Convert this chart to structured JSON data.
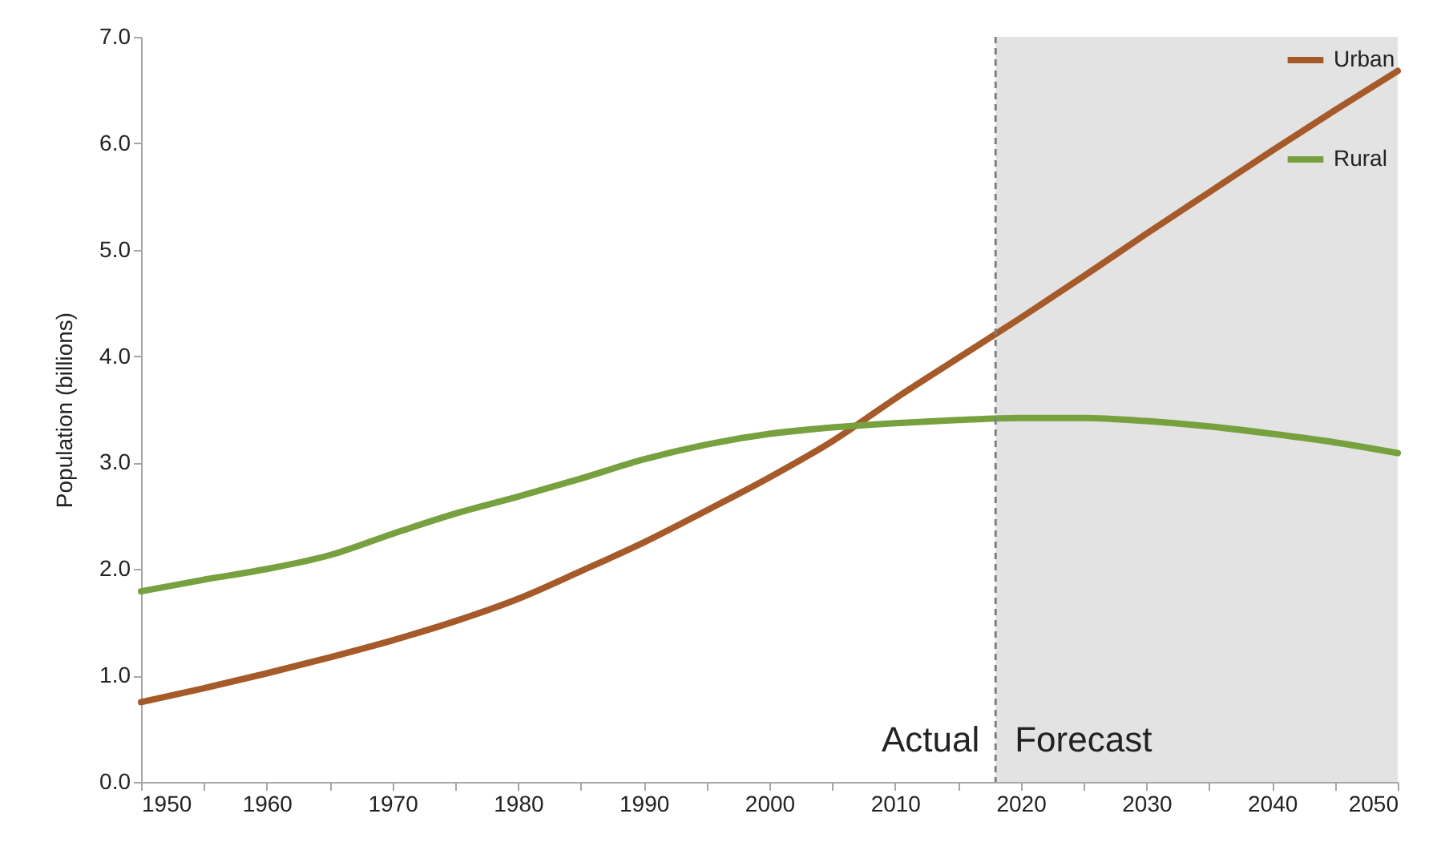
{
  "chart_data": {
    "type": "line",
    "ylabel": "Population (billions)",
    "x": [
      1950,
      1955,
      1960,
      1965,
      1970,
      1975,
      1980,
      1985,
      1990,
      1995,
      2000,
      2005,
      2010,
      2015,
      2020,
      2025,
      2030,
      2035,
      2040,
      2045,
      2050
    ],
    "series": [
      {
        "name": "Urban",
        "color": "#a65a2a",
        "values": [
          0.75,
          0.88,
          1.02,
          1.17,
          1.33,
          1.51,
          1.72,
          1.98,
          2.25,
          2.55,
          2.86,
          3.2,
          3.6,
          3.98,
          4.36,
          4.75,
          5.15,
          5.54,
          5.93,
          6.31,
          6.68
        ]
      },
      {
        "name": "Rural",
        "color": "#77a13f",
        "values": [
          1.79,
          1.9,
          2.0,
          2.13,
          2.33,
          2.52,
          2.68,
          2.85,
          3.03,
          3.17,
          3.27,
          3.33,
          3.37,
          3.4,
          3.42,
          3.42,
          3.39,
          3.34,
          3.27,
          3.19,
          3.09
        ]
      }
    ],
    "xlim": [
      1950,
      2050
    ],
    "xticks": [
      1950,
      {
        "value": 1955,
        "label": null
      },
      1960,
      {
        "value": 1965,
        "label": null
      },
      1970,
      {
        "value": 1975,
        "label": null
      },
      1980,
      {
        "value": 1985,
        "label": null
      },
      1990,
      {
        "value": 1995,
        "label": null
      },
      2000,
      {
        "value": 2005,
        "label": null
      },
      2010,
      {
        "value": 2015,
        "label": null
      },
      2020,
      {
        "value": 2025,
        "label": null
      },
      2030,
      {
        "value": 2035,
        "label": null
      },
      2040,
      {
        "value": 2045,
        "label": null
      },
      2050
    ],
    "ylim": [
      0,
      7
    ],
    "yticks": [
      {
        "value": 0,
        "label": "0.0"
      },
      {
        "value": 1,
        "label": "1.0"
      },
      {
        "value": 2,
        "label": "2.0"
      },
      {
        "value": 3,
        "label": "3.0"
      },
      {
        "value": 4,
        "label": "4.0"
      },
      {
        "value": 5,
        "label": "5.0"
      },
      {
        "value": 6,
        "label": "6.0"
      },
      {
        "value": 7,
        "label": "7.0"
      }
    ],
    "ref_lines": [
      {
        "axis": "x",
        "value": 2018,
        "label": "Actual",
        "color": "#808080",
        "line_style": "dashed"
      }
    ],
    "bands": [
      {
        "axis": "x",
        "from": 2018,
        "to": 2050,
        "label": "Forecast",
        "color": "#e3e3e3"
      }
    ],
    "legend": "top right",
    "grid": false,
    "marker": "none",
    "line_style": "solid"
  }
}
